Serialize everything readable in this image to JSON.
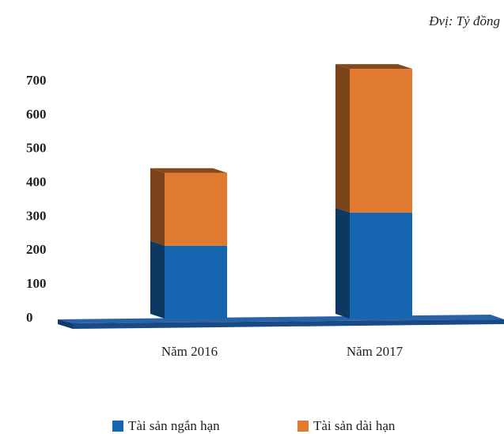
{
  "chart_data": {
    "type": "bar3d_stacked",
    "unit_note": "Đvị: Tỷ đồng",
    "categories": [
      "Năm 2016",
      "Năm 2017"
    ],
    "series": [
      {
        "name": "Tài sản ngắn hạn",
        "color": "#1565b0",
        "values": [
          215,
          313
        ]
      },
      {
        "name": "Tài sản dài hạn",
        "color": "#e07a2e",
        "values": [
          215,
          424
        ]
      }
    ],
    "ylim": [
      0,
      700
    ],
    "yticks": [
      0,
      100,
      200,
      300,
      400,
      500,
      600,
      700
    ],
    "grid": false,
    "legend": "bottom"
  }
}
